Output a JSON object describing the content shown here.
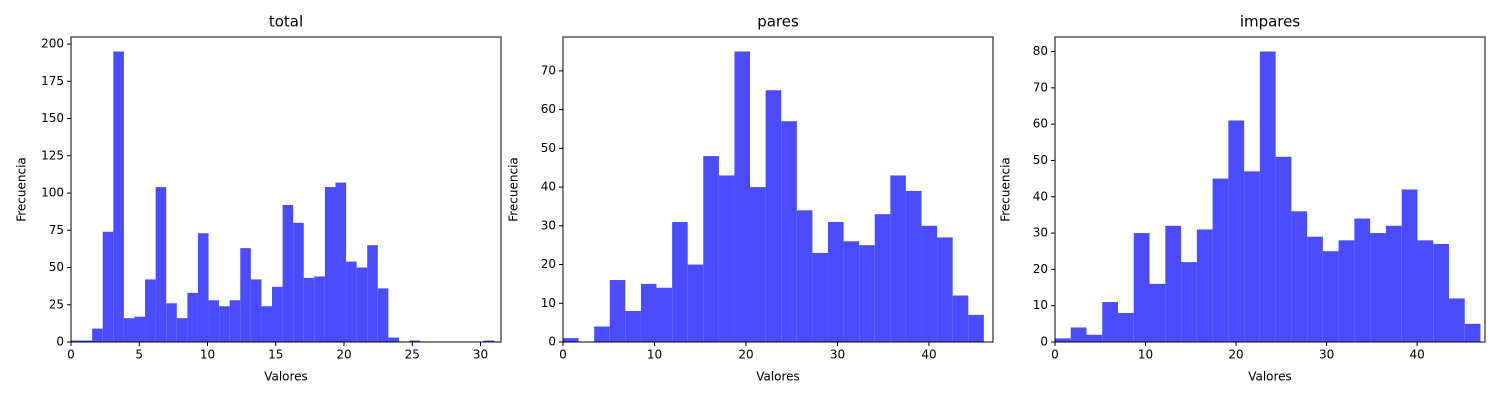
{
  "chart_data": [
    {
      "type": "histogram",
      "title": "total",
      "xlabel": "Valores",
      "ylabel": "Frecuencia",
      "color": "#4b4bff",
      "bins": [
        0,
        0.775,
        1.55,
        2.325,
        3.1,
        3.875,
        4.65,
        5.425,
        6.2,
        6.975,
        7.75,
        8.525,
        9.3,
        10.075,
        10.85,
        11.625,
        12.4,
        13.175,
        13.95,
        14.725,
        15.5,
        16.275,
        17.05,
        17.825,
        18.6,
        19.375,
        20.15,
        20.925,
        21.7,
        22.475,
        23.25,
        24.025,
        24.8,
        25.575,
        26.35,
        27.125,
        27.9,
        28.675,
        29.45,
        30.225,
        31
      ],
      "values": [
        1,
        1,
        9,
        74,
        195,
        16,
        17,
        42,
        104,
        26,
        16,
        33,
        73,
        28,
        24,
        28,
        63,
        42,
        24,
        37,
        92,
        80,
        43,
        44,
        104,
        107,
        54,
        50,
        65,
        36,
        3,
        0,
        1,
        0,
        0,
        0,
        0,
        0,
        0,
        1
      ],
      "xlim": [
        0,
        31.5
      ],
      "ylim": [
        0,
        204.75
      ],
      "xticks": [
        0,
        5,
        10,
        15,
        20,
        25,
        30
      ],
      "yticks": [
        0,
        25,
        50,
        75,
        100,
        125,
        150,
        175,
        200
      ]
    },
    {
      "type": "histogram",
      "title": "pares",
      "xlabel": "Valores",
      "ylabel": "Frecuencia",
      "color": "#4b4bff",
      "bins": [
        0,
        1.7,
        3.41,
        5.11,
        6.81,
        8.52,
        10.22,
        11.93,
        13.63,
        15.33,
        17.04,
        18.74,
        20.44,
        22.15,
        23.85,
        25.56,
        27.26,
        28.96,
        30.67,
        32.37,
        34.07,
        35.78,
        37.48,
        39.19,
        40.89,
        42.59,
        44.3,
        46
      ],
      "values": [
        1,
        0,
        4,
        16,
        8,
        15,
        14,
        31,
        20,
        48,
        43,
        75,
        40,
        65,
        57,
        34,
        23,
        31,
        26,
        25,
        33,
        43,
        39,
        30,
        27,
        12,
        7
      ],
      "xlim": [
        0,
        47
      ],
      "ylim": [
        0,
        78.75
      ],
      "xticks": [
        0,
        10,
        20,
        30,
        40
      ],
      "yticks": [
        0,
        10,
        20,
        30,
        40,
        50,
        60,
        70
      ]
    },
    {
      "type": "histogram",
      "title": "impares",
      "xlabel": "Valores",
      "ylabel": "Frecuencia",
      "color": "#4b4bff",
      "bins": [
        0,
        1.74,
        3.48,
        5.22,
        6.96,
        8.7,
        10.44,
        12.19,
        13.93,
        15.67,
        17.41,
        19.15,
        20.89,
        22.63,
        24.37,
        26.11,
        27.85,
        29.59,
        31.33,
        33.07,
        34.81,
        36.56,
        38.3,
        40.04,
        41.78,
        43.52,
        45.26,
        47
      ],
      "values": [
        1,
        4,
        2,
        11,
        8,
        30,
        16,
        32,
        22,
        31,
        45,
        61,
        47,
        80,
        51,
        36,
        29,
        25,
        28,
        34,
        30,
        32,
        42,
        28,
        27,
        12,
        5
      ],
      "xlim": [
        0,
        47.5
      ],
      "ylim": [
        0,
        84
      ],
      "xticks": [
        0,
        10,
        20,
        30,
        40
      ],
      "yticks": [
        0,
        10,
        20,
        30,
        40,
        50,
        60,
        70,
        80
      ]
    }
  ]
}
